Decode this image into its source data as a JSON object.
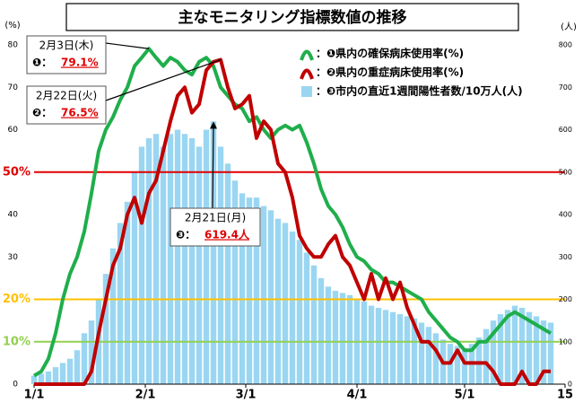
{
  "chart_data": {
    "type": "combo",
    "title": "主なモニタリング指標数値の推移",
    "y_label": "(%)",
    "y2_label": "(人)",
    "x": [
      0,
      2,
      4,
      6,
      8,
      10,
      12,
      14,
      16,
      18,
      20,
      22,
      24,
      26,
      28,
      30,
      32,
      34,
      36,
      38,
      40,
      42,
      44,
      46,
      48,
      50,
      52,
      54,
      56,
      58,
      60,
      62,
      64,
      66,
      68,
      70,
      72,
      74,
      76,
      78,
      80,
      82,
      84,
      86,
      88,
      90,
      92,
      94,
      96,
      98,
      100,
      102,
      104,
      106,
      108,
      110,
      112,
      114,
      116,
      118,
      120,
      122,
      124,
      126,
      128,
      130,
      132,
      134,
      136,
      138,
      140,
      142,
      144
    ],
    "xlim": [
      0,
      148
    ],
    "xticks": [
      {
        "value": 0,
        "label": "1/1"
      },
      {
        "value": 31,
        "label": "2/1"
      },
      {
        "value": 59,
        "label": "3/1"
      },
      {
        "value": 90,
        "label": "4/1"
      },
      {
        "value": 120,
        "label": "5/1"
      },
      {
        "value": 148,
        "label": "15"
      }
    ],
    "ylim": [
      0,
      80
    ],
    "yticks": [
      0,
      {
        "value": 10,
        "label": "10%"
      },
      {
        "value": 20,
        "label": "20%"
      },
      30,
      40,
      {
        "value": 50,
        "label": "50%"
      },
      60,
      70,
      80
    ],
    "y2lim": [
      0,
      800
    ],
    "y2ticks": [
      0,
      100,
      200,
      300,
      400,
      500,
      600,
      700,
      800
    ],
    "reference_lines": [
      {
        "value": 50,
        "color": "#e00000"
      },
      {
        "value": 20,
        "color": "#ffc000"
      },
      {
        "value": 10,
        "color": "#92d050"
      }
    ],
    "series": [
      {
        "name": "：❶県内の確保病床使用率(%)",
        "type": "line",
        "color": "#1fae4b",
        "values": [
          2,
          3,
          6,
          12,
          20,
          26,
          30,
          36,
          45,
          55,
          60,
          63,
          67,
          70,
          75,
          77,
          79.1,
          77,
          75,
          77,
          76,
          74,
          73,
          76,
          77,
          75,
          70,
          68,
          66,
          65,
          62,
          63,
          60,
          58,
          60,
          61,
          60,
          61,
          57,
          52,
          46,
          42,
          40,
          37,
          33,
          30,
          29,
          27,
          26,
          24,
          24,
          23,
          22,
          21,
          20,
          17,
          15,
          13,
          11,
          10,
          8,
          8,
          10,
          10,
          12,
          14,
          16,
          17,
          16,
          15,
          14,
          13,
          12
        ]
      },
      {
        "name": "：❷県内の重症病床使用率(%)",
        "type": "line",
        "color": "#c00000",
        "values": [
          0,
          0,
          0,
          0,
          0,
          0,
          0,
          0,
          3,
          12,
          20,
          28,
          32,
          40,
          44,
          38,
          45,
          48,
          55,
          62,
          68,
          70,
          64,
          66,
          74,
          76,
          76.5,
          70,
          65,
          66,
          68,
          58,
          62,
          60,
          52,
          50,
          44,
          35,
          32,
          30,
          30,
          33,
          35,
          30,
          28,
          24,
          20,
          26,
          20,
          25,
          20,
          24,
          18,
          14,
          10,
          10,
          8,
          5,
          5,
          8,
          5,
          5,
          5,
          5,
          3,
          0,
          0,
          0,
          3,
          0,
          0,
          3,
          3
        ]
      },
      {
        "name": "：❸市内の直近1週間陽性者数/10万人(人)",
        "type": "bar",
        "axis": "y2",
        "color": "#9ad6f2",
        "values": [
          20,
          25,
          30,
          40,
          50,
          60,
          80,
          120,
          150,
          200,
          260,
          320,
          380,
          430,
          500,
          560,
          580,
          590,
          560,
          590,
          600,
          590,
          580,
          560,
          600,
          619.4,
          560,
          520,
          480,
          450,
          440,
          440,
          420,
          410,
          390,
          380,
          360,
          340,
          310,
          280,
          250,
          230,
          220,
          215,
          210,
          200,
          195,
          185,
          180,
          175,
          170,
          165,
          160,
          155,
          145,
          135,
          120,
          105,
          95,
          90,
          85,
          95,
          110,
          130,
          150,
          165,
          175,
          185,
          180,
          170,
          160,
          150,
          145
        ]
      }
    ],
    "annotations": [
      {
        "date": "2月3日(木)",
        "marker": "❶：",
        "value": "79.1%"
      },
      {
        "date": "2月22日(火)",
        "marker": "❷：",
        "value": "76.5%"
      },
      {
        "date": "2月21日(月)",
        "marker": "❸：",
        "value": "619.4人"
      }
    ]
  }
}
